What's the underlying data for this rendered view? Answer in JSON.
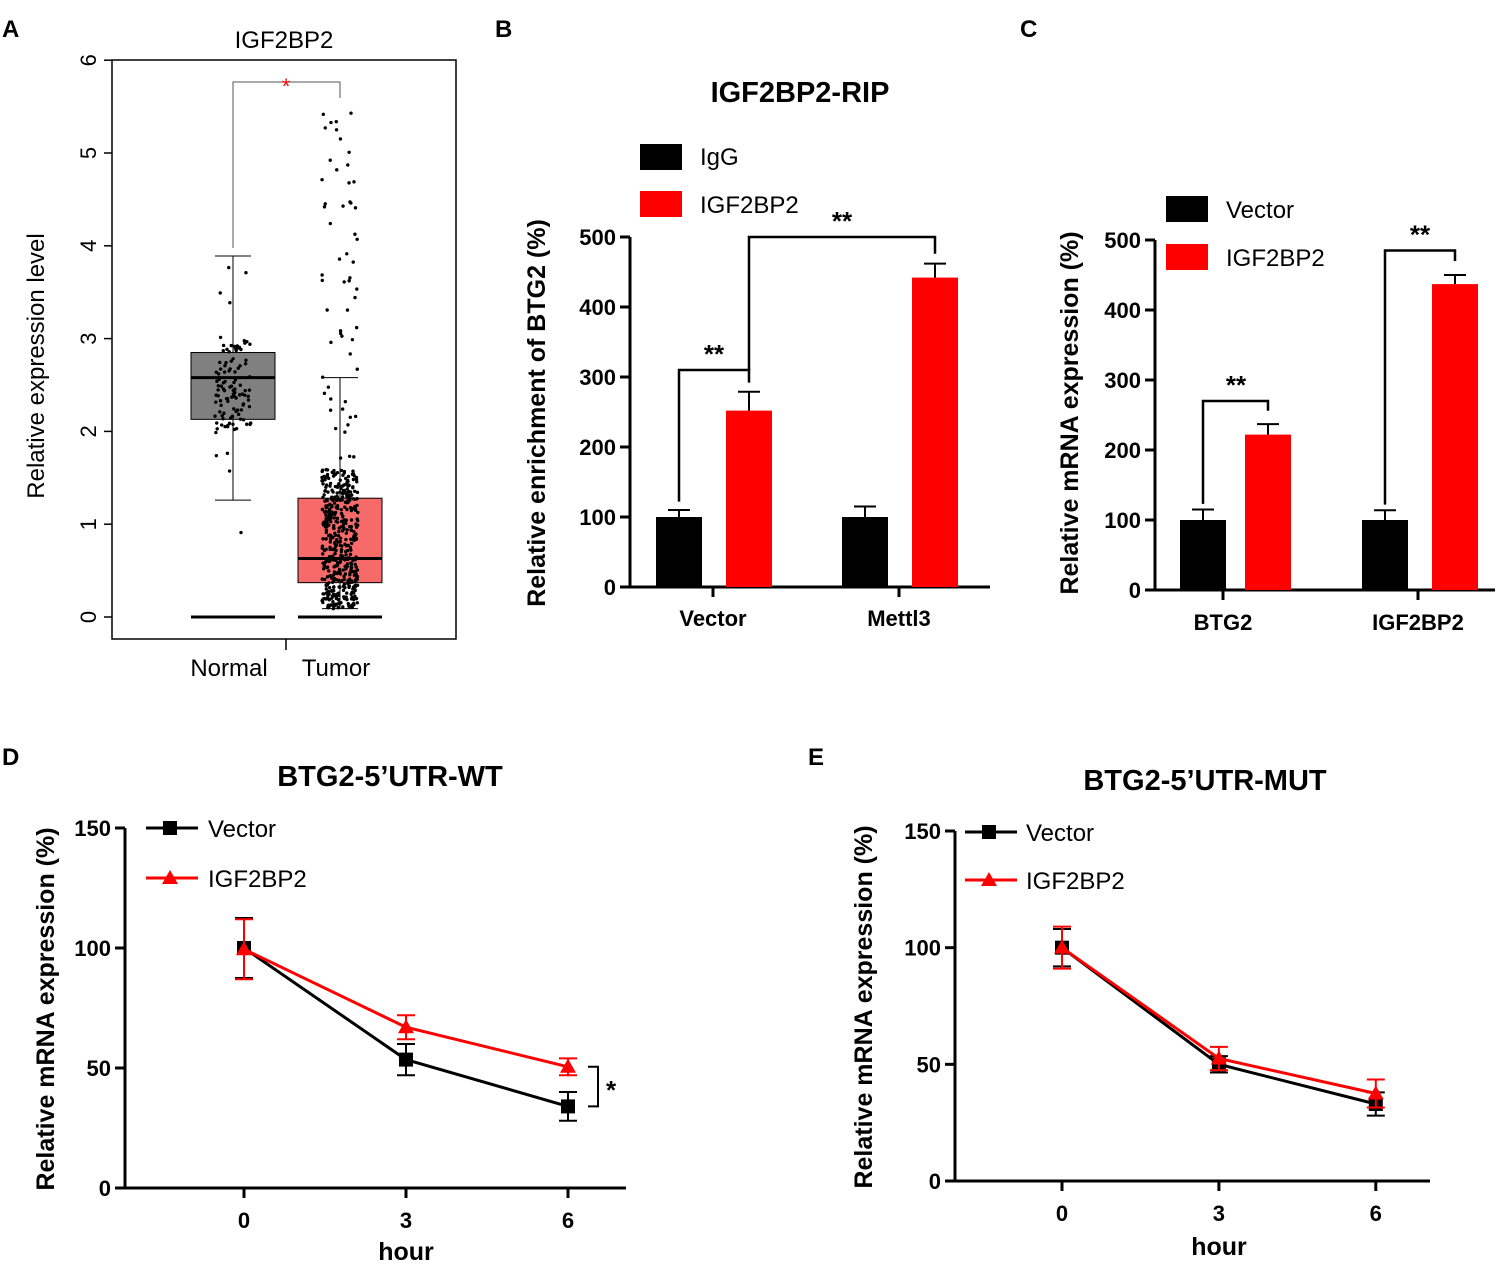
{
  "colors": {
    "black": "#000000",
    "red": "#ff0000",
    "gray_box": "#808080",
    "pink_box": "#f66a6a"
  },
  "chart_data": [
    {
      "panel": "A",
      "type": "box",
      "title": "IGF2BP2",
      "ylabel": "Relative expression level",
      "ylim": [
        0,
        6
      ],
      "yticks": [
        "0",
        "1",
        "2",
        "3",
        "4",
        "5",
        "6"
      ],
      "categories": [
        "Normal",
        "Tumor"
      ],
      "significance": "*",
      "boxes": [
        {
          "name": "Normal",
          "color": "#808080",
          "min": 1.26,
          "q1": 2.13,
          "median": 2.58,
          "q3": 2.85,
          "max": 3.89
        },
        {
          "name": "Tumor",
          "color": "#f66a6a",
          "min": 0.09,
          "q1": 0.37,
          "median": 0.63,
          "q3": 1.28,
          "max": 2.58
        }
      ]
    },
    {
      "panel": "B",
      "type": "bar",
      "title": "IGF2BP2-RIP",
      "ylabel": "Relative enrichment of BTG2 (%)",
      "ylim": [
        0,
        500
      ],
      "yticks": [
        "0",
        "100",
        "200",
        "300",
        "400",
        "500"
      ],
      "categories": [
        "Vector",
        "Mettl3"
      ],
      "series": [
        {
          "name": "IgG",
          "color": "#000000",
          "values": [
            100,
            100
          ],
          "errors": [
            10,
            15
          ]
        },
        {
          "name": "IGF2BP2",
          "color": "#ff0000",
          "values": [
            252,
            442
          ],
          "errors": [
            27,
            20
          ]
        }
      ],
      "significance": [
        "**",
        "**"
      ]
    },
    {
      "panel": "C",
      "type": "bar",
      "title": "",
      "ylabel": "Relative mRNA  expression (%)",
      "ylim": [
        0,
        500
      ],
      "yticks": [
        "0",
        "100",
        "200",
        "300",
        "400",
        "500"
      ],
      "categories": [
        "BTG2",
        "IGF2BP2"
      ],
      "series": [
        {
          "name": "Vector",
          "color": "#000000",
          "values": [
            100,
            100
          ],
          "errors": [
            15,
            14
          ]
        },
        {
          "name": "IGF2BP2",
          "color": "#ff0000",
          "values": [
            222,
            437
          ],
          "errors": [
            15,
            13
          ]
        }
      ],
      "significance": [
        "**",
        "**"
      ]
    },
    {
      "panel": "D",
      "type": "line",
      "title": "BTG2-5’UTR-WT",
      "xlabel": "hour",
      "ylabel": "Relative mRNA  expression (%)",
      "ylim": [
        0,
        150
      ],
      "yticks": [
        "0",
        "50",
        "100",
        "150"
      ],
      "x": [
        0,
        3,
        6
      ],
      "xticks": [
        "0",
        "3",
        "6"
      ],
      "series": [
        {
          "name": "Vector",
          "color": "#000000",
          "marker": "square",
          "values": [
            100,
            53.5,
            34
          ],
          "errors": [
            12.5,
            6.5,
            6
          ]
        },
        {
          "name": "IGF2BP2",
          "color": "#ff0000",
          "marker": "triangle",
          "values": [
            99.5,
            67,
            50.5
          ],
          "errors": [
            12.5,
            5,
            3.5
          ]
        }
      ],
      "significance": "*"
    },
    {
      "panel": "E",
      "type": "line",
      "title": "BTG2-5’UTR-MUT",
      "xlabel": "hour",
      "ylabel": "Relative mRNA  expression (%)",
      "ylim": [
        0,
        150
      ],
      "yticks": [
        "0",
        "50",
        "100",
        "150"
      ],
      "x": [
        0,
        3,
        6
      ],
      "xticks": [
        "0",
        "3",
        "6"
      ],
      "series": [
        {
          "name": "Vector",
          "color": "#000000",
          "marker": "square",
          "values": [
            100,
            50,
            33
          ],
          "errors": [
            8,
            3.5,
            5
          ]
        },
        {
          "name": "IGF2BP2",
          "color": "#ff0000",
          "marker": "triangle",
          "values": [
            100,
            52.5,
            37.5
          ],
          "errors": [
            9,
            5,
            6
          ]
        }
      ],
      "significance": ""
    }
  ]
}
